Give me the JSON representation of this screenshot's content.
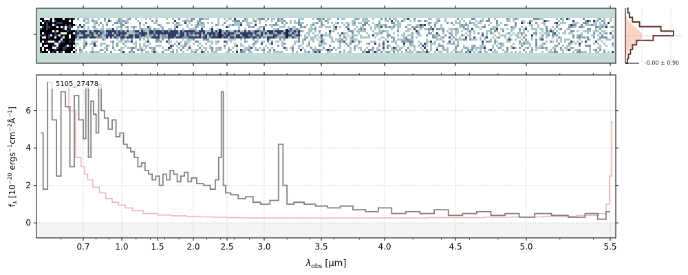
{
  "chart_data": [
    {
      "type": "image",
      "panel": "2d-spectrum",
      "description_of_content": "",
      "background_color": "#c5dcd9",
      "colormap": [
        "#ffffff",
        "#a9c6c8",
        "#7d93a6",
        "#353a66",
        "#000000"
      ],
      "trace_band_fraction": [
        0.3,
        0.55
      ]
    },
    {
      "type": "histogram",
      "panel": "pixel-distribution",
      "annotation": "-0.00 ± 0.90",
      "fill_color": "#fbd3c7",
      "line_color": "#5b3a2e",
      "bins": [
        -3.0,
        -2.5,
        -2.0,
        -1.5,
        -1.0,
        -0.5,
        0.0,
        0.5,
        1.0,
        1.5,
        2.0,
        2.5,
        3.0
      ],
      "counts": [
        0.04,
        0.06,
        0.1,
        0.14,
        0.22,
        0.55,
        0.95,
        0.7,
        0.28,
        0.14,
        0.08,
        0.05,
        0.03
      ],
      "gaussian_sigma": 0.9
    },
    {
      "type": "line",
      "panel": "1d-spectrum",
      "label": "5105_27478",
      "xlabel_parts": {
        "lambda": "λ",
        "sub": "obs",
        "unit": "[μm]"
      },
      "ylabel_parts": {
        "main": "f",
        "sub": "λ",
        "unit": "[10",
        "exp1": "−20",
        "rest": " ergs",
        "exp2": "−1",
        "cm": "cm",
        "exp3": "−2",
        "ang": "Å",
        "exp4": "−1",
        "close": "]"
      },
      "x_tick_labels": [
        "0.7",
        "1.0",
        "1.5",
        "2.0",
        "2.5",
        "3.0",
        "3.5",
        "4.0",
        "4.5",
        "5.0",
        "5.5"
      ],
      "x_tick_values": [
        0.7,
        1.0,
        1.5,
        2.0,
        2.5,
        3.0,
        3.5,
        4.0,
        4.5,
        5.0,
        5.5
      ],
      "x_minor_ticks": [
        0.6,
        0.8,
        0.9,
        1.2,
        1.4,
        1.6,
        1.8,
        2.2,
        2.4,
        2.6,
        2.8,
        3.2,
        3.4,
        3.6,
        3.8,
        4.2,
        4.4,
        4.6,
        4.8,
        5.2,
        5.4
      ],
      "y_tick_labels": [
        "0",
        "2",
        "4",
        "6"
      ],
      "y_tick_values": [
        0,
        2,
        4,
        6
      ],
      "xlim": [
        0.49,
        5.52
      ],
      "ylim": [
        -0.8,
        7.9
      ],
      "x_axis_scale": "nonlinear (approx. wavelength^0.5 spacing)",
      "grid": true,
      "series": [
        {
          "role": "flux",
          "color": "#808080",
          "x": [
            0.51,
            0.53,
            0.55,
            0.57,
            0.59,
            0.61,
            0.63,
            0.65,
            0.67,
            0.69,
            0.71,
            0.73,
            0.75,
            0.77,
            0.79,
            0.81,
            0.83,
            0.85,
            0.88,
            0.91,
            0.94,
            0.97,
            1.0,
            1.05,
            1.1,
            1.15,
            1.2,
            1.25,
            1.3,
            1.35,
            1.4,
            1.45,
            1.5,
            1.55,
            1.6,
            1.65,
            1.7,
            1.75,
            1.8,
            1.85,
            1.9,
            1.95,
            2.0,
            2.1,
            2.2,
            2.3,
            2.35,
            2.4,
            2.43,
            2.46,
            2.5,
            2.6,
            2.7,
            2.8,
            2.9,
            3.0,
            3.1,
            3.15,
            3.18,
            3.22,
            3.3,
            3.4,
            3.5,
            3.6,
            3.7,
            3.8,
            3.9,
            4.0,
            4.1,
            4.2,
            4.3,
            4.4,
            4.5,
            4.6,
            4.7,
            4.8,
            4.9,
            5.0,
            5.1,
            5.2,
            5.3,
            5.4,
            5.45,
            5.5
          ],
          "y": [
            4.8,
            1.8,
            7.5,
            5.5,
            2.5,
            7.0,
            6.2,
            3.0,
            6.8,
            5.5,
            4.5,
            7.2,
            3.5,
            6.5,
            5.8,
            4.8,
            7.4,
            6.0,
            5.6,
            5.0,
            5.5,
            4.6,
            4.8,
            4.2,
            4.0,
            3.8,
            3.5,
            3.0,
            3.2,
            2.8,
            2.6,
            2.3,
            2.5,
            2.0,
            2.6,
            2.3,
            2.8,
            2.6,
            2.2,
            2.5,
            2.7,
            2.2,
            2.4,
            2.1,
            2.0,
            1.8,
            2.3,
            3.5,
            7.0,
            2.0,
            1.6,
            1.5,
            1.3,
            1.4,
            1.1,
            1.0,
            1.2,
            4.2,
            2.0,
            1.0,
            1.1,
            1.0,
            0.9,
            0.8,
            0.9,
            0.7,
            0.6,
            0.8,
            0.5,
            0.6,
            0.5,
            0.7,
            0.4,
            0.5,
            0.6,
            0.4,
            0.5,
            0.3,
            0.5,
            0.4,
            0.3,
            0.5,
            0.2,
            0.6
          ]
        },
        {
          "role": "uncertainty",
          "color": "#f3b6b6",
          "x": [
            0.62,
            0.65,
            0.68,
            0.7,
            0.72,
            0.75,
            0.8,
            0.85,
            0.9,
            0.95,
            1.0,
            1.1,
            1.2,
            1.4,
            1.6,
            1.8,
            2.0,
            2.2,
            2.4,
            2.6,
            2.8,
            3.0,
            3.2,
            3.4,
            3.6,
            3.8,
            4.0,
            4.2,
            4.4,
            4.6,
            4.8,
            5.0,
            5.2,
            5.4,
            5.46,
            5.49,
            5.5,
            5.51
          ],
          "y": [
            7.4,
            6.0,
            3.5,
            3.0,
            2.6,
            2.3,
            1.9,
            1.6,
            1.3,
            1.1,
            0.95,
            0.8,
            0.65,
            0.5,
            0.42,
            0.38,
            0.35,
            0.32,
            0.3,
            0.28,
            0.27,
            0.26,
            0.26,
            0.26,
            0.26,
            0.26,
            0.27,
            0.27,
            0.28,
            0.28,
            0.3,
            0.32,
            0.35,
            0.4,
            0.5,
            1.0,
            2.5,
            5.4
          ]
        }
      ]
    }
  ]
}
